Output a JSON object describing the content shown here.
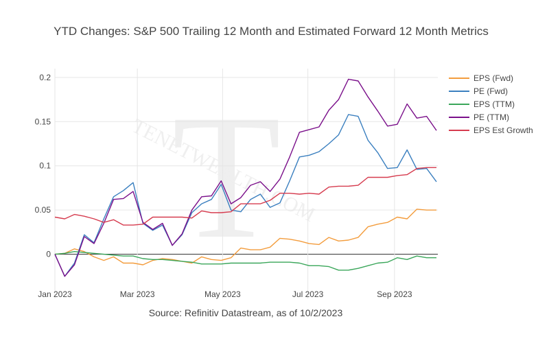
{
  "chart_data": {
    "type": "line",
    "title": "YTD Changes: S&P 500 Trailing 12 Month and Estimated Forward 12 Month Metrics",
    "xlabel": "",
    "ylabel": "",
    "source": "Source: Refinitiv Datastream, as of 10/2/2023",
    "watermark": "TENETWEALTH.COM",
    "ylim": [
      -0.05,
      0.21
    ],
    "xlim": [
      "2023-01-01",
      "2023-10-02"
    ],
    "y_ticks": [
      0,
      0.05,
      0.1,
      0.15,
      0.2
    ],
    "y_tick_labels": [
      "0",
      "0.05",
      "0.1",
      "0.15",
      "0.2"
    ],
    "x_ticks": [
      "2023-01-01",
      "2023-03-01",
      "2023-05-01",
      "2023-07-01",
      "2023-09-01"
    ],
    "x_tick_labels": [
      "Jan 2023",
      "Mar 2023",
      "May 2023",
      "Jul 2023",
      "Sep 2023"
    ],
    "grid": true,
    "legend_position": "right",
    "x": [
      "2023-01-01",
      "2023-01-08",
      "2023-01-15",
      "2023-01-22",
      "2023-01-29",
      "2023-02-05",
      "2023-02-12",
      "2023-02-19",
      "2023-02-26",
      "2023-03-05",
      "2023-03-12",
      "2023-03-19",
      "2023-03-26",
      "2023-04-02",
      "2023-04-09",
      "2023-04-16",
      "2023-04-23",
      "2023-04-30",
      "2023-05-07",
      "2023-05-14",
      "2023-05-21",
      "2023-05-28",
      "2023-06-04",
      "2023-06-11",
      "2023-06-18",
      "2023-06-25",
      "2023-07-02",
      "2023-07-09",
      "2023-07-16",
      "2023-07-23",
      "2023-07-30",
      "2023-08-06",
      "2023-08-13",
      "2023-08-20",
      "2023-08-27",
      "2023-09-03",
      "2023-09-10",
      "2023-09-17",
      "2023-09-24",
      "2023-10-01"
    ],
    "series": [
      {
        "name": "EPS (Fwd)",
        "color": "#f39c3c",
        "values": [
          0.0,
          0.001,
          0.006,
          0.003,
          -0.003,
          -0.007,
          -0.003,
          -0.01,
          -0.01,
          -0.012,
          -0.007,
          -0.005,
          -0.006,
          -0.008,
          -0.01,
          -0.003,
          -0.006,
          -0.007,
          -0.004,
          0.007,
          0.005,
          0.005,
          0.008,
          0.018,
          0.017,
          0.015,
          0.012,
          0.011,
          0.019,
          0.015,
          0.016,
          0.019,
          0.031,
          0.034,
          0.036,
          0.042,
          0.04,
          0.051,
          0.05,
          0.05
        ]
      },
      {
        "name": "PE (Fwd)",
        "color": "#3a7fbf",
        "values": [
          0.0,
          -0.025,
          -0.01,
          0.022,
          0.013,
          0.04,
          0.065,
          0.072,
          0.081,
          0.035,
          0.027,
          0.033,
          0.01,
          0.022,
          0.047,
          0.057,
          0.062,
          0.079,
          0.05,
          0.048,
          0.062,
          0.068,
          0.053,
          0.058,
          0.083,
          0.11,
          0.112,
          0.116,
          0.125,
          0.135,
          0.158,
          0.156,
          0.129,
          0.115,
          0.097,
          0.098,
          0.118,
          0.096,
          0.097,
          0.082
        ]
      },
      {
        "name": "EPS (TTM)",
        "color": "#3aa65a",
        "values": [
          0.0,
          0.001,
          0.003,
          0.002,
          0.001,
          0.0,
          -0.001,
          -0.002,
          -0.002,
          -0.005,
          -0.006,
          -0.006,
          -0.007,
          -0.008,
          -0.009,
          -0.011,
          -0.011,
          -0.011,
          -0.01,
          -0.01,
          -0.01,
          -0.01,
          -0.009,
          -0.009,
          -0.009,
          -0.01,
          -0.013,
          -0.013,
          -0.014,
          -0.018,
          -0.018,
          -0.016,
          -0.013,
          -0.01,
          -0.009,
          -0.004,
          -0.006,
          -0.002,
          -0.004,
          -0.004
        ]
      },
      {
        "name": "PE (TTM)",
        "color": "#7a0f8a",
        "values": [
          0.0,
          -0.025,
          -0.012,
          0.02,
          0.012,
          0.035,
          0.062,
          0.063,
          0.071,
          0.036,
          0.028,
          0.035,
          0.01,
          0.023,
          0.05,
          0.065,
          0.066,
          0.083,
          0.057,
          0.064,
          0.078,
          0.082,
          0.071,
          0.085,
          0.11,
          0.138,
          0.141,
          0.144,
          0.163,
          0.175,
          0.198,
          0.196,
          0.178,
          0.162,
          0.145,
          0.147,
          0.17,
          0.154,
          0.156,
          0.14
        ]
      },
      {
        "name": "EPS Est Growth",
        "color": "#d63b4e",
        "values": [
          0.042,
          0.04,
          0.045,
          0.043,
          0.04,
          0.036,
          0.039,
          0.033,
          0.033,
          0.034,
          0.042,
          0.042,
          0.042,
          0.042,
          0.041,
          0.049,
          0.047,
          0.047,
          0.048,
          0.057,
          0.057,
          0.057,
          0.061,
          0.069,
          0.069,
          0.068,
          0.069,
          0.068,
          0.076,
          0.077,
          0.077,
          0.078,
          0.087,
          0.087,
          0.087,
          0.089,
          0.09,
          0.097,
          0.098,
          0.098
        ]
      }
    ]
  }
}
